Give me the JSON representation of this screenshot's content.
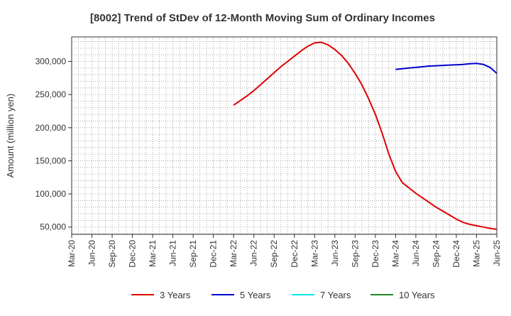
{
  "chart_data": {
    "type": "line",
    "title": "[8002]  Trend of StDev of 12-Month Moving Sum of Ordinary Incomes",
    "xlabel": "",
    "ylabel": "Amount (million yen)",
    "x_tick_labels": [
      "Mar-20",
      "Jun-20",
      "Sep-20",
      "Dec-20",
      "Mar-21",
      "Jun-21",
      "Sep-21",
      "Dec-21",
      "Mar-22",
      "Jun-22",
      "Sep-22",
      "Dec-22",
      "Mar-23",
      "Jun-23",
      "Sep-23",
      "Dec-23",
      "Mar-24",
      "Jun-24",
      "Sep-24",
      "Dec-24",
      "Mar-25",
      "Jun-25"
    ],
    "y_ticks": [
      50000,
      100000,
      150000,
      200000,
      250000,
      300000
    ],
    "y_tick_labels": [
      "50,000",
      "100,000",
      "150,000",
      "200,000",
      "250,000",
      "300,000"
    ],
    "ylim": [
      39000,
      337000
    ],
    "xlim": [
      "2020-03",
      "2025-06"
    ],
    "grid": true,
    "legend_position": "bottom",
    "series": [
      {
        "name": "3 Years",
        "color": "#e00000",
        "points": [
          [
            "2022-03",
            234000
          ],
          [
            "2022-04",
            241000
          ],
          [
            "2022-05",
            248000
          ],
          [
            "2022-06",
            256000
          ],
          [
            "2022-07",
            265000
          ],
          [
            "2022-08",
            274000
          ],
          [
            "2022-09",
            283000
          ],
          [
            "2022-10",
            292000
          ],
          [
            "2022-11",
            300000
          ],
          [
            "2022-12",
            308000
          ],
          [
            "2023-01",
            316000
          ],
          [
            "2023-02",
            323000
          ],
          [
            "2023-03",
            328000
          ],
          [
            "2023-04",
            329000
          ],
          [
            "2023-05",
            325000
          ],
          [
            "2023-06",
            318000
          ],
          [
            "2023-07",
            309000
          ],
          [
            "2023-08",
            297000
          ],
          [
            "2023-09",
            282000
          ],
          [
            "2023-10",
            265000
          ],
          [
            "2023-11",
            244000
          ],
          [
            "2023-12",
            220000
          ],
          [
            "2024-01",
            192000
          ],
          [
            "2024-02",
            160000
          ],
          [
            "2024-03",
            134000
          ],
          [
            "2024-04",
            117000
          ],
          [
            "2024-05",
            109000
          ],
          [
            "2024-06",
            101000
          ],
          [
            "2024-07",
            94000
          ],
          [
            "2024-08",
            87000
          ],
          [
            "2024-09",
            80000
          ],
          [
            "2024-10",
            74000
          ],
          [
            "2024-11",
            68000
          ],
          [
            "2024-12",
            62000
          ],
          [
            "2025-01",
            57000
          ],
          [
            "2025-02",
            54000
          ],
          [
            "2025-03",
            52000
          ],
          [
            "2025-04",
            50000
          ],
          [
            "2025-05",
            48000
          ],
          [
            "2025-06",
            46500
          ]
        ]
      },
      {
        "name": "5 Years",
        "color": "#0000cc",
        "points": [
          [
            "2024-03",
            288000
          ],
          [
            "2024-04",
            289000
          ],
          [
            "2024-05",
            290000
          ],
          [
            "2024-06",
            291000
          ],
          [
            "2024-07",
            292000
          ],
          [
            "2024-08",
            293000
          ],
          [
            "2024-09",
            293500
          ],
          [
            "2024-10",
            294000
          ],
          [
            "2024-11",
            294500
          ],
          [
            "2024-12",
            295000
          ],
          [
            "2025-01",
            295500
          ],
          [
            "2025-02",
            296500
          ],
          [
            "2025-03",
            297000
          ],
          [
            "2025-04",
            295500
          ],
          [
            "2025-05",
            291000
          ],
          [
            "2025-06",
            282000
          ]
        ]
      },
      {
        "name": "7 Years",
        "color": "#00e5ee",
        "points": []
      },
      {
        "name": "10 Years",
        "color": "#228b22",
        "points": []
      }
    ]
  }
}
